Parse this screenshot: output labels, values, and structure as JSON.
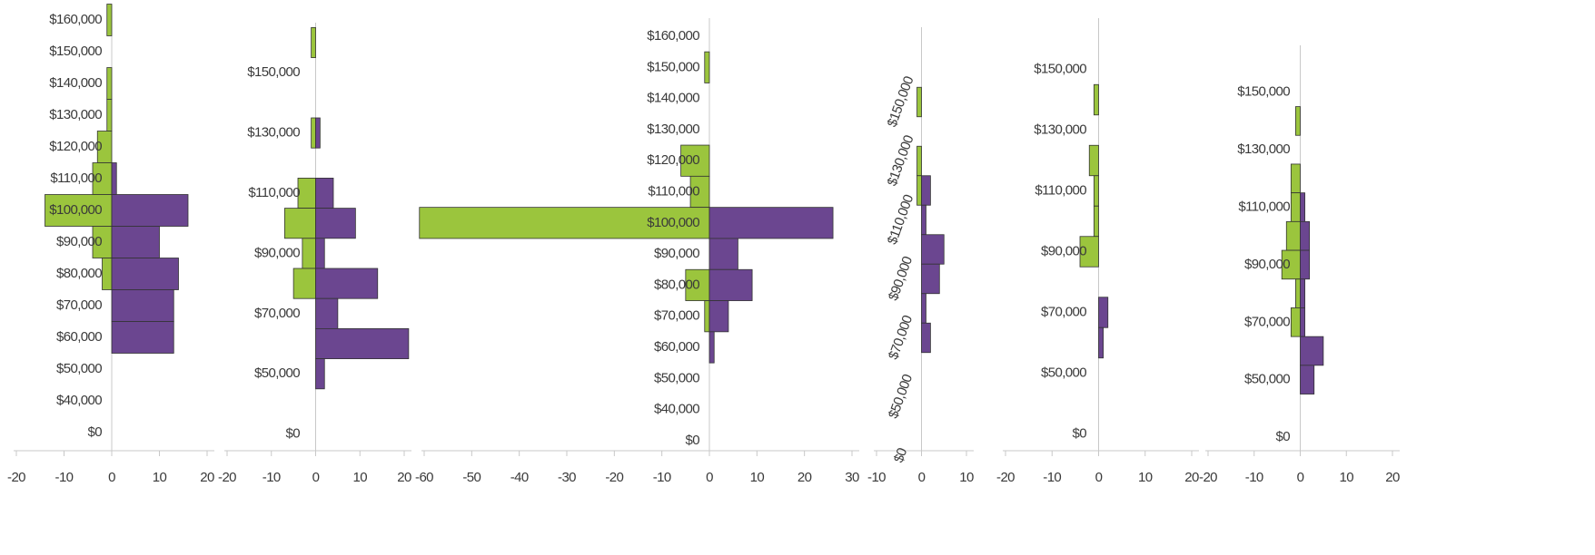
{
  "chart_data": [
    {
      "type": "bar",
      "categories": [
        "$160,000",
        "$150,000",
        "$140,000",
        "$130,000",
        "$120,000",
        "$110,000",
        "$100,000",
        "$90,000",
        "$80,000",
        "$70,000",
        "$60,000",
        "$50,000",
        "$40,000",
        "$0"
      ],
      "series": [
        {
          "color": "#9bc53d",
          "values": [
            -1,
            0,
            -1,
            -1,
            -3,
            -4,
            -14,
            -4,
            -2,
            0,
            0,
            0,
            0,
            0
          ]
        },
        {
          "color": "#6b4690",
          "values": [
            0,
            0,
            0,
            0,
            0,
            1,
            16,
            10,
            14,
            13,
            13,
            0,
            0,
            0
          ]
        }
      ],
      "xlim": [
        -20,
        20
      ],
      "xticks": [
        -20,
        -10,
        0,
        10,
        20
      ]
    },
    {
      "type": "bar",
      "categories": [
        null,
        "$150,000",
        null,
        "$130,000",
        null,
        "$110,000",
        null,
        "$90,000",
        null,
        "$70,000",
        null,
        "$50,000",
        null,
        "$0"
      ],
      "series": [
        {
          "color": "#9bc53d",
          "values": [
            -1,
            0,
            0,
            -1,
            0,
            -4,
            -7,
            -3,
            -5,
            0,
            0,
            0,
            0,
            0
          ]
        },
        {
          "color": "#6b4690",
          "values": [
            0,
            0,
            0,
            1,
            0,
            4,
            9,
            2,
            14,
            5,
            21,
            2,
            0,
            0
          ]
        }
      ],
      "xlim": [
        -20,
        20
      ],
      "xticks": [
        -20,
        -10,
        0,
        10,
        20
      ]
    },
    {
      "type": "bar",
      "categories": [
        "$160,000",
        "$150,000",
        "$140,000",
        "$130,000",
        "$120,000",
        "$110,000",
        "$100,000",
        "$90,000",
        "$80,000",
        "$70,000",
        "$60,000",
        "$50,000",
        "$40,000",
        "$0"
      ],
      "series": [
        {
          "color": "#9bc53d",
          "values": [
            0,
            -1,
            0,
            0,
            -6,
            -4,
            -61,
            0,
            -5,
            -1,
            0,
            0,
            0,
            0
          ]
        },
        {
          "color": "#6b4690",
          "values": [
            0,
            0,
            0,
            0,
            0,
            0,
            26,
            6,
            9,
            4,
            1,
            0,
            0,
            0
          ]
        }
      ],
      "xlim": [
        -60,
        30
      ],
      "xticks": [
        -60,
        -50,
        -40,
        -30,
        -20,
        -10,
        0,
        10,
        20,
        30
      ]
    },
    {
      "type": "bar",
      "categories": [
        null,
        "$150,000",
        null,
        "$130,000",
        null,
        "$110,000",
        null,
        "$90,000",
        null,
        "$70,000",
        null,
        "$50,000",
        null,
        "$0"
      ],
      "series": [
        {
          "color": "#9bc53d",
          "values": [
            0,
            -1,
            0,
            -1,
            -1,
            0,
            0,
            0,
            0,
            0,
            0,
            0,
            0,
            0
          ]
        },
        {
          "color": "#6b4690",
          "values": [
            0,
            0,
            0,
            0,
            2,
            1,
            5,
            4,
            1,
            2,
            0,
            0,
            0,
            0
          ]
        }
      ],
      "xlim": [
        -10,
        10
      ],
      "xticks": [
        -10,
        0,
        10
      ]
    },
    {
      "type": "bar",
      "categories": [
        null,
        "$150,000",
        null,
        "$130,000",
        null,
        "$110,000",
        null,
        "$90,000",
        null,
        "$70,000",
        null,
        "$50,000",
        null,
        "$0"
      ],
      "series": [
        {
          "color": "#9bc53d",
          "values": [
            0,
            0,
            -1,
            0,
            -2,
            -1,
            -1,
            -4,
            0,
            0,
            0,
            0,
            0,
            0
          ]
        },
        {
          "color": "#6b4690",
          "values": [
            0,
            0,
            0,
            0,
            0,
            0,
            0,
            0,
            0,
            2,
            1,
            0,
            0,
            0
          ]
        }
      ],
      "xlim": [
        -20,
        20
      ],
      "xticks": [
        -20,
        -10,
        0,
        10,
        20
      ]
    },
    {
      "type": "bar",
      "categories": [
        null,
        "$150,000",
        null,
        "$130,000",
        null,
        "$110,000",
        null,
        "$90,000",
        null,
        "$70,000",
        null,
        "$50,000",
        null,
        "$0"
      ],
      "series": [
        {
          "color": "#9bc53d",
          "values": [
            0,
            0,
            -1,
            0,
            -2,
            -2,
            -3,
            -4,
            -1,
            -2,
            0,
            0,
            0,
            0
          ]
        },
        {
          "color": "#6b4690",
          "values": [
            0,
            0,
            0,
            0,
            0,
            1,
            2,
            2,
            1,
            1,
            5,
            3,
            0,
            0
          ]
        }
      ],
      "xlim": [
        -20,
        20
      ],
      "xticks": [
        -20,
        -10,
        0,
        10,
        20
      ]
    }
  ]
}
